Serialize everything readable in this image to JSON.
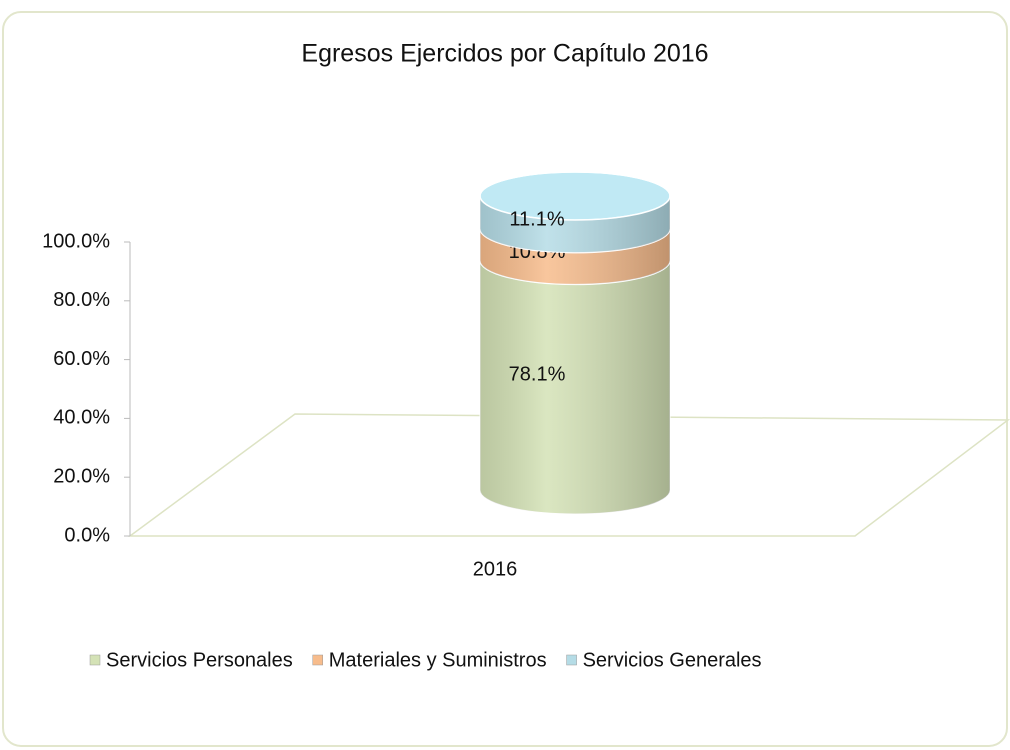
{
  "chart_data": {
    "type": "stacked-cylinder",
    "title": "Egresos  Ejercidos  por Capítulo 2016",
    "categories": [
      "2016"
    ],
    "series": [
      {
        "name": "Servicios Personales",
        "color": "#d4e2b6",
        "values": [
          78.1
        ],
        "value_labels": [
          "78.1%"
        ]
      },
      {
        "name": "Materiales y Suministros",
        "color": "#f7bc8c",
        "values": [
          10.8
        ],
        "value_labels": [
          "10.8%"
        ]
      },
      {
        "name": "Servicios Generales",
        "color": "#b5dce6",
        "values": [
          11.1
        ],
        "value_labels": [
          "11.1%"
        ]
      }
    ],
    "ylim": [
      0,
      100
    ],
    "yticks": [
      {
        "value": 0,
        "label": "0.0%"
      },
      {
        "value": 20,
        "label": "20.0%"
      },
      {
        "value": 40,
        "label": "40.0%"
      },
      {
        "value": 60,
        "label": "60.0%"
      },
      {
        "value": 80,
        "label": "80.0%"
      },
      {
        "value": 100,
        "label": "100.0%"
      }
    ],
    "legend": "bottom"
  }
}
